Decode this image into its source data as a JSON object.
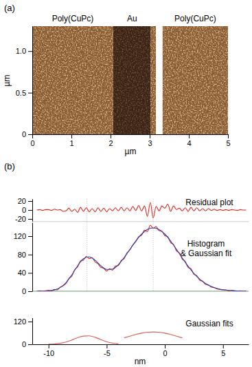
{
  "chart_data": [
    {
      "type": "image",
      "panel": "(a)",
      "xlabel": "µm",
      "ylabel": "µm",
      "xlim": [
        0,
        5
      ],
      "ylim": [
        0,
        1.3
      ],
      "xticks": [
        0,
        1,
        2,
        3,
        4,
        5
      ],
      "yticks": [
        0,
        0.5,
        {
          "value": 1,
          "label": "1.0"
        }
      ],
      "regions": [
        {
          "name": "Poly(CuPc)",
          "x0": 0,
          "x1": 2.07,
          "color": "#8a5a2e"
        },
        {
          "name": "Au",
          "x0": 2.07,
          "x1": 3.03,
          "color": "#3b2213"
        },
        {
          "x0": 3.03,
          "x1": 3.16,
          "color": "#8a5a2e"
        },
        {
          "x0": 3.16,
          "x1": 3.33,
          "color": "#ffffff"
        },
        {
          "name": "Poly(CuPc)",
          "x0": 3.33,
          "x1": 5,
          "color": "#8a5a2e"
        }
      ]
    },
    {
      "type": "line",
      "panel": "(b)",
      "title": "Residual plot",
      "xlim": [
        -11.4,
        7.2
      ],
      "ylim": [
        -25,
        25
      ],
      "yticks": [
        -20,
        0,
        20
      ],
      "tick_labels": "y",
      "series": [
        {
          "color": "#e0241b",
          "x": [
            -11,
            -10.75,
            -10.5,
            -10.25,
            -10,
            -9.75,
            -9.5,
            -9.25,
            -9,
            -8.75,
            -8.5,
            -8.25,
            -8,
            -7.75,
            -7.5,
            -7.25,
            -7,
            -6.75,
            -6.5,
            -6.25,
            -6,
            -5.75,
            -5.5,
            -5.25,
            -5,
            -4.75,
            -4.5,
            -4.25,
            -4,
            -3.75,
            -3.5,
            -3.25,
            -3,
            -2.75,
            -2.5,
            -2.25,
            -2,
            -1.75,
            -1.5,
            -1.25,
            -1,
            -0.75,
            -0.5,
            -0.25,
            0,
            0.25,
            0.5,
            0.75,
            1,
            1.25,
            1.5,
            1.75,
            2,
            2.25,
            2.5,
            2.75,
            3,
            3.25,
            3.5,
            3.75,
            4,
            4.25,
            4.5,
            4.75,
            5,
            5.25,
            5.5,
            5.75,
            6,
            6.25,
            6.5,
            6.75,
            7
          ],
          "values": [
            0,
            1,
            -1,
            1,
            1,
            -1,
            2,
            0,
            1,
            -3,
            -2,
            4,
            -3,
            2,
            -5,
            6,
            -3,
            5,
            -4,
            3,
            -4,
            5,
            -3,
            4,
            -4,
            3,
            -2,
            5,
            -2,
            6,
            -2,
            5,
            -2,
            8,
            -1,
            10,
            -2,
            9,
            -14,
            17,
            -18,
            8,
            -2,
            9,
            4,
            13,
            -3,
            9,
            1,
            4,
            -2,
            5,
            -3,
            6,
            -2,
            5,
            -2,
            3,
            -2,
            3,
            -1,
            2,
            -1,
            1,
            -1,
            1,
            -1,
            1,
            0,
            -1,
            1,
            0,
            0
          ]
        }
      ]
    },
    {
      "type": "line",
      "title": [
        "Histogram",
        "& Gaussian fit"
      ],
      "xlim": [
        -11.4,
        7.2
      ],
      "ylim": [
        0,
        150
      ],
      "yticks": [
        0,
        40,
        80,
        120
      ],
      "tick_labels": "y",
      "peak_positions": [
        -6.7,
        -1.0
      ],
      "series": [
        {
          "color": "#33a532",
          "x": [
            -11.4,
            7.2
          ],
          "values": [
            0,
            0
          ]
        },
        {
          "color": "#e0241b",
          "x": [
            -11,
            -10.75,
            -10.5,
            -10.25,
            -10,
            -9.75,
            -9.5,
            -9.25,
            -9,
            -8.75,
            -8.5,
            -8.25,
            -8,
            -7.75,
            -7.5,
            -7.25,
            -7,
            -6.75,
            -6.5,
            -6.25,
            -6,
            -5.75,
            -5.5,
            -5.25,
            -5,
            -4.75,
            -4.5,
            -4.25,
            -4,
            -3.75,
            -3.5,
            -3.25,
            -3,
            -2.75,
            -2.5,
            -2.25,
            -2,
            -1.75,
            -1.5,
            -1.25,
            -1,
            -0.75,
            -0.5,
            -0.25,
            0,
            0.25,
            0.5,
            0.75,
            1,
            1.25,
            1.5,
            1.75,
            2,
            2.25,
            2.5,
            2.75,
            3,
            3.25,
            3.5,
            3.75,
            4,
            4.25,
            4.5,
            4.75,
            5,
            5.25,
            5.5,
            5.75,
            6,
            6.25,
            6.5,
            6.75,
            7
          ],
          "values": [
            0,
            1,
            0,
            1,
            2,
            1,
            4,
            3,
            9,
            12,
            17,
            28,
            33,
            47,
            53,
            66,
            68,
            76,
            71,
            73,
            64,
            60,
            52,
            50,
            44,
            49,
            46,
            55,
            56,
            67,
            71,
            84,
            90,
            101,
            108,
            119,
            122,
            133,
            130,
            144,
            137,
            141,
            132,
            131,
            121,
            119,
            106,
            102,
            88,
            84,
            70,
            65,
            52,
            49,
            37,
            34,
            24,
            22,
            15,
            14,
            9,
            8,
            5,
            4,
            3,
            3,
            1,
            2,
            1,
            0,
            1,
            0,
            0
          ]
        },
        {
          "color": "#2b3fb0",
          "x": [
            -11,
            -10.5,
            -10,
            -9.5,
            -9,
            -8.5,
            -8,
            -7.5,
            -7,
            -6.5,
            -6,
            -5.5,
            -5,
            -4.5,
            -4,
            -3.5,
            -3,
            -2.5,
            -2,
            -1.5,
            -1,
            -0.5,
            0,
            0.5,
            1,
            1.5,
            2,
            2.5,
            3,
            3.5,
            4,
            4.5,
            5,
            5.5,
            6,
            6.5,
            7
          ],
          "values": [
            0.0,
            0.2,
            0.8,
            2.8,
            8.1,
            18.7,
            35.7,
            55.5,
            70.8,
            74.9,
            67.6,
            55.6,
            47.6,
            48.4,
            57.9,
            73.4,
            91.5,
            109.4,
            124.5,
            134.5,
            138,
            134.5,
            124.5,
            109.4,
            91.3,
            72.4,
            54.5,
            38.9,
            26.4,
            17.0,
            10.4,
            6.1,
            3.4,
            1.8,
            0.9,
            0.4,
            0.2
          ]
        }
      ]
    },
    {
      "type": "line",
      "title": "Gaussian fits",
      "xlabel": "nm",
      "xlim": [
        -11.4,
        7.2
      ],
      "ylim": [
        0,
        140
      ],
      "xticks": [
        -10,
        -5,
        0,
        5
      ],
      "yticks": [
        0,
        120
      ],
      "series": [
        {
          "color": "#e05a55",
          "x": [
            -10,
            -9.5,
            -9,
            -8.5,
            -8,
            -7.5,
            -7,
            -6.5,
            -6,
            -5.5,
            -5,
            -4.5,
            -4
          ],
          "values": [
            0.5,
            1.7,
            5.1,
            11.8,
            22.4,
            34.5,
            43.3,
            44.3,
            36.8,
            24.8,
            13.6,
            6.1,
            2.2
          ]
        },
        {
          "color": "#e05a55",
          "x": [
            -3.5,
            -3,
            -2.5,
            -2,
            -1.5,
            -1,
            -0.5,
            0,
            0.5,
            1,
            1.5
          ],
          "values": [
            34.1,
            43.0,
            51.5,
            58.6,
            63.4,
            65.0,
            63.4,
            58.6,
            51.5,
            43.0,
            34.1
          ]
        }
      ]
    }
  ]
}
